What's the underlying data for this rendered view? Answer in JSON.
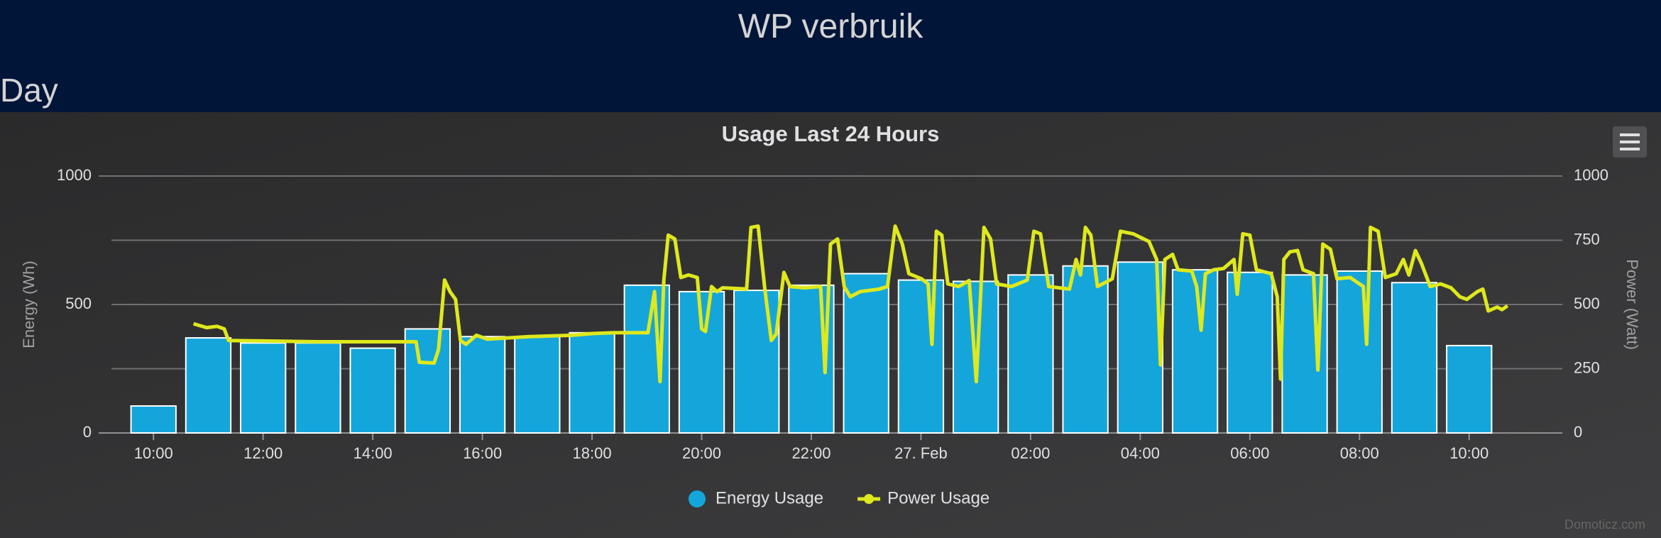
{
  "header": {
    "title": "WP verbruik",
    "section": "Day"
  },
  "chart_data": {
    "type": "bar_line",
    "title": "Usage Last 24 Hours",
    "ylabel": "Energy (Wh)",
    "y2label": "Power (Watt)",
    "credits": "Domoticz.com",
    "xlim": [
      -1,
      25.7
    ],
    "xticks": [
      {
        "value": 0,
        "label": "10:00"
      },
      {
        "value": 2,
        "label": "12:00"
      },
      {
        "value": 4,
        "label": "14:00"
      },
      {
        "value": 6,
        "label": "16:00"
      },
      {
        "value": 8,
        "label": "18:00"
      },
      {
        "value": 10,
        "label": "20:00"
      },
      {
        "value": 12,
        "label": "22:00"
      },
      {
        "value": 14,
        "label": "27. Feb"
      },
      {
        "value": 16,
        "label": "02:00"
      },
      {
        "value": 18,
        "label": "04:00"
      },
      {
        "value": 20,
        "label": "06:00"
      },
      {
        "value": 22,
        "label": "08:00"
      },
      {
        "value": 24,
        "label": "10:00"
      }
    ],
    "ylim": [
      0,
      1000
    ],
    "yticks": [
      0,
      500,
      1000
    ],
    "y2lim": [
      0,
      1000
    ],
    "y2ticks": [
      0,
      250,
      500,
      750,
      1000
    ],
    "grid": true,
    "series": [
      {
        "name": "Energy Usage",
        "type": "bar",
        "color": "#14a6da",
        "x": [
          0,
          1,
          2,
          3,
          4,
          5,
          6,
          7,
          8,
          9,
          10,
          11,
          12,
          13,
          14,
          15,
          16,
          17,
          18,
          19,
          20,
          21,
          22,
          23,
          24
        ],
        "values": [
          105,
          370,
          350,
          350,
          330,
          405,
          375,
          375,
          390,
          575,
          550,
          555,
          575,
          620,
          595,
          590,
          615,
          650,
          665,
          635,
          625,
          615,
          630,
          585,
          340
        ]
      },
      {
        "name": "Power Usage",
        "type": "line",
        "axis": "y2",
        "color": "#dfe81c",
        "x": [
          0.73,
          0.97,
          1.16,
          1.29,
          1.37,
          3.0,
          4.79,
          4.85,
          5.12,
          5.2,
          5.31,
          5.41,
          5.51,
          5.6,
          5.7,
          5.89,
          6.09,
          6.86,
          7.63,
          8.02,
          8.41,
          9.02,
          9.14,
          9.24,
          9.31,
          9.39,
          9.51,
          9.62,
          9.76,
          9.92,
          10.0,
          10.07,
          10.18,
          10.28,
          10.38,
          10.82,
          10.9,
          11.03,
          11.15,
          11.27,
          11.36,
          11.5,
          11.61,
          11.88,
          12.17,
          12.25,
          12.35,
          12.48,
          12.6,
          12.71,
          12.89,
          13.24,
          13.39,
          13.53,
          13.66,
          13.78,
          14.01,
          14.13,
          14.2,
          14.28,
          14.38,
          14.49,
          14.69,
          14.88,
          15.01,
          15.15,
          15.27,
          15.38,
          15.65,
          15.94,
          16.06,
          16.18,
          16.33,
          16.52,
          16.71,
          16.83,
          16.91,
          17.0,
          17.1,
          17.22,
          17.49,
          17.64,
          17.87,
          18.16,
          18.3,
          18.37,
          18.45,
          18.59,
          18.69,
          18.94,
          19.03,
          19.11,
          19.19,
          19.34,
          19.52,
          19.71,
          19.77,
          19.87,
          20.0,
          20.12,
          20.39,
          20.5,
          20.56,
          20.62,
          20.73,
          20.87,
          20.97,
          21.16,
          21.24,
          21.33,
          21.47,
          21.59,
          21.83,
          22.07,
          22.13,
          22.2,
          22.34,
          22.47,
          22.67,
          22.8,
          22.9,
          23.02,
          23.13,
          23.29,
          23.48,
          23.67,
          23.83,
          23.96,
          24.15,
          24.25,
          24.35,
          24.51,
          24.6,
          24.7
        ],
        "values": [
          425,
          410,
          415,
          405,
          360,
          355,
          355,
          275,
          272,
          325,
          595,
          550,
          520,
          360,
          345,
          380,
          365,
          375,
          380,
          387,
          390,
          390,
          550,
          200,
          595,
          770,
          755,
          605,
          615,
          605,
          405,
          395,
          570,
          550,
          565,
          560,
          800,
          805,
          565,
          360,
          385,
          625,
          570,
          565,
          570,
          235,
          735,
          755,
          570,
          530,
          550,
          560,
          570,
          805,
          735,
          620,
          600,
          580,
          345,
          785,
          770,
          580,
          570,
          593,
          200,
          800,
          755,
          580,
          570,
          595,
          785,
          775,
          570,
          565,
          560,
          675,
          615,
          800,
          770,
          570,
          600,
          785,
          775,
          745,
          675,
          265,
          675,
          695,
          635,
          630,
          570,
          400,
          620,
          635,
          640,
          675,
          540,
          775,
          770,
          635,
          620,
          530,
          210,
          675,
          705,
          710,
          635,
          620,
          245,
          735,
          715,
          600,
          605,
          570,
          345,
          800,
          785,
          605,
          620,
          675,
          615,
          710,
          660,
          570,
          580,
          565,
          530,
          520,
          550,
          560,
          475,
          490,
          480,
          495
        ]
      }
    ]
  }
}
